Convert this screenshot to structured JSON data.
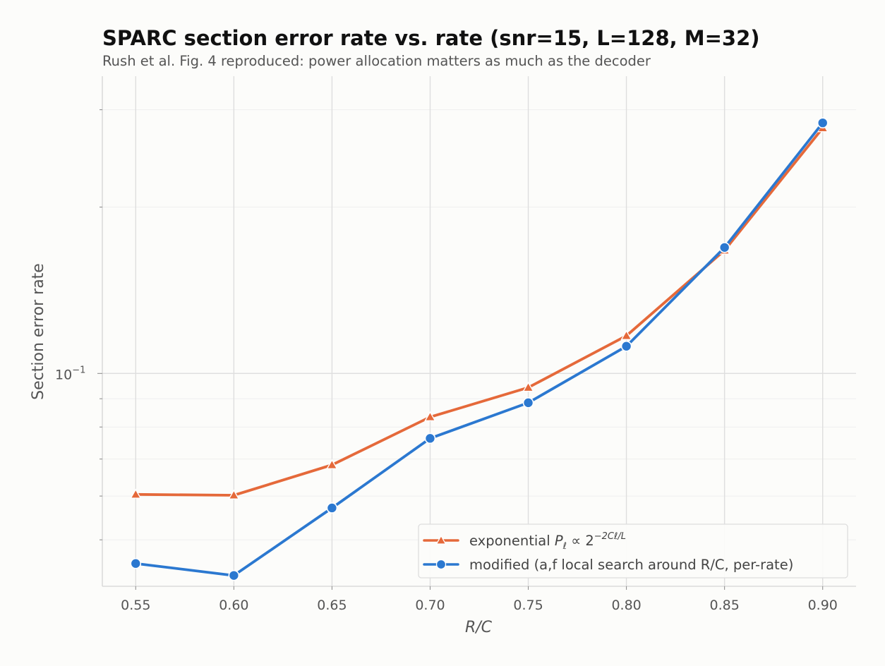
{
  "chart_data": {
    "type": "line",
    "title": "SPARC section error rate vs. rate  (snr=15, L=128, M=32)",
    "subtitle": "Rush et al. Fig. 4 reproduced: power allocation matters as much as the decoder",
    "xlabel": "R/C",
    "ylabel": "Section error rate",
    "yscale": "log",
    "xlim": [
      0.533,
      0.917
    ],
    "ylim": [
      0.0412,
      0.345
    ],
    "x_ticks": [
      0.55,
      0.6,
      0.65,
      0.7,
      0.75,
      0.8,
      0.85,
      0.9
    ],
    "x_tick_labels": [
      "0.55",
      "0.60",
      "0.65",
      "0.70",
      "0.75",
      "0.80",
      "0.85",
      "0.90"
    ],
    "y_major_ticks": [
      0.1
    ],
    "y_major_tick_labels": [
      "10",
      "−1"
    ],
    "grid": true,
    "legend_position": "lower-right",
    "x": [
      0.55,
      0.6,
      0.65,
      0.7,
      0.75,
      0.8,
      0.85,
      0.9
    ],
    "series": [
      {
        "name": "exponential P_ℓ ∝ 2^(−2Cℓ/L)",
        "legend_main": "exponential ",
        "legend_p": "P",
        "legend_p_sub": "ℓ",
        "legend_rest": " ∝ 2",
        "legend_sup": "−2Cℓ/L",
        "marker": "triangle",
        "color": "#e5693a",
        "values": [
          0.0604,
          0.0602,
          0.0683,
          0.0834,
          0.0943,
          0.117,
          0.167,
          0.278
        ]
      },
      {
        "name": "modified (a,f local search around R/C, per-rate)",
        "legend_main": "modified (a,f local search around R/C, per-rate)",
        "marker": "circle",
        "color": "#2b78d0",
        "values": [
          0.0453,
          0.0431,
          0.0571,
          0.0763,
          0.0885,
          0.112,
          0.169,
          0.284
        ]
      }
    ]
  }
}
